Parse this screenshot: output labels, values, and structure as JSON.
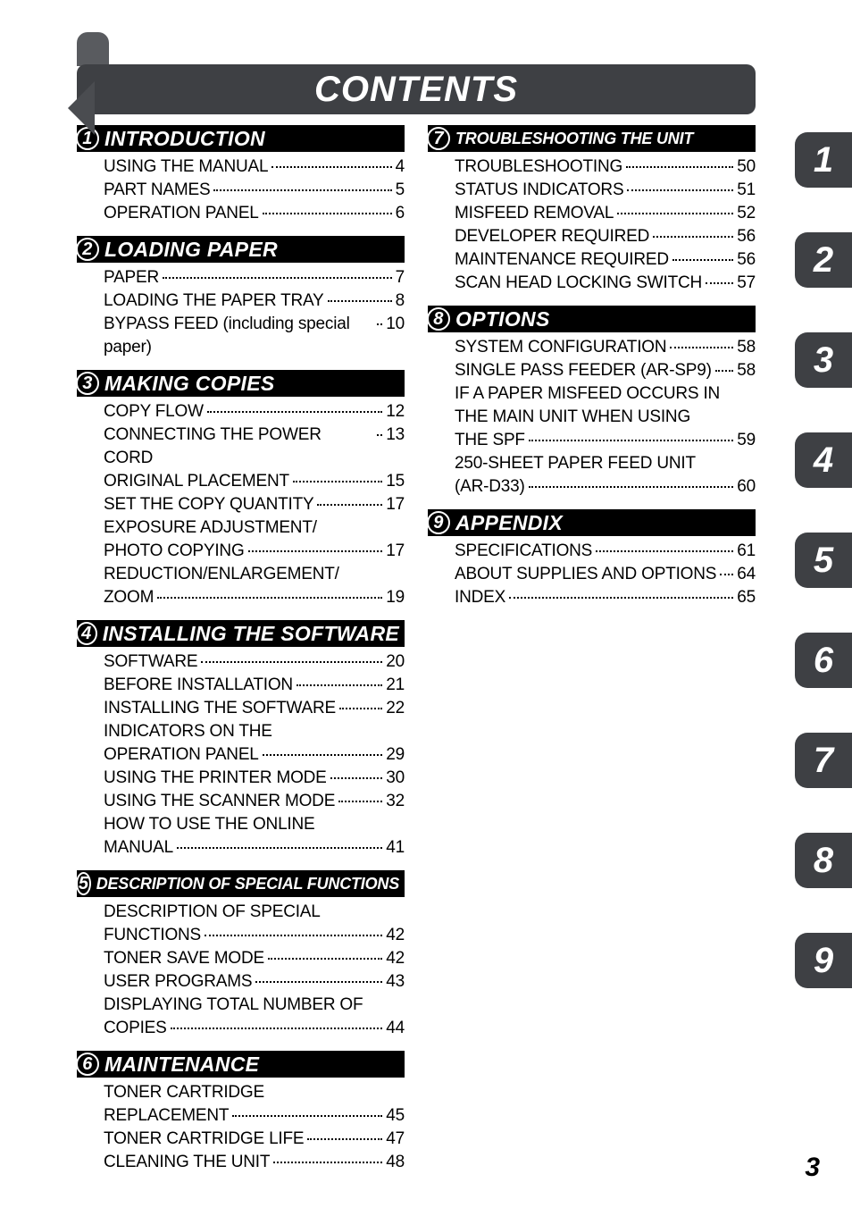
{
  "title": "CONTENTS",
  "page_number": "3",
  "colors": {
    "title_bg": "#3e4044",
    "tab_bg": "#3e4044",
    "section_bg": "#000000",
    "text": "#000000"
  },
  "side_tabs": [
    "1",
    "2",
    "3",
    "4",
    "5",
    "6",
    "7",
    "8",
    "9"
  ],
  "sections_left": [
    {
      "num": "1",
      "title": "INTRODUCTION",
      "entries": [
        {
          "label": "USING THE MANUAL",
          "page": "4"
        },
        {
          "label": "PART NAMES",
          "page": "5"
        },
        {
          "label": "OPERATION PANEL",
          "page": "6"
        }
      ]
    },
    {
      "num": "2",
      "title": "LOADING PAPER",
      "entries": [
        {
          "label": "PAPER",
          "page": "7"
        },
        {
          "label": "LOADING THE PAPER TRAY",
          "page": "8"
        },
        {
          "label": "BYPASS FEED (including special paper)",
          "page": "10"
        }
      ]
    },
    {
      "num": "3",
      "title": "MAKING COPIES",
      "entries": [
        {
          "label": "COPY FLOW",
          "page": "12"
        },
        {
          "label": "CONNECTING THE POWER CORD",
          "page": "13"
        },
        {
          "label": "ORIGINAL PLACEMENT",
          "page": "15"
        },
        {
          "label": "SET THE COPY QUANTITY",
          "page": "17"
        },
        {
          "label": "EXPOSURE ADJUSTMENT/\nPHOTO COPYING",
          "page": "17"
        },
        {
          "label": "REDUCTION/ENLARGEMENT/\nZOOM",
          "page": "19"
        }
      ]
    },
    {
      "num": "4",
      "title": "INSTALLING THE SOFTWARE",
      "entries": [
        {
          "label": "SOFTWARE",
          "page": "20"
        },
        {
          "label": "BEFORE INSTALLATION",
          "page": "21"
        },
        {
          "label": "INSTALLING THE SOFTWARE",
          "page": "22"
        },
        {
          "label": "INDICATORS ON THE\nOPERATION PANEL",
          "page": "29"
        },
        {
          "label": "USING THE PRINTER MODE",
          "page": "30"
        },
        {
          "label": "USING THE SCANNER MODE",
          "page": "32"
        },
        {
          "label": "HOW TO USE THE ONLINE\nMANUAL",
          "page": "41"
        }
      ]
    },
    {
      "num": "5",
      "title": "DESCRIPTION OF SPECIAL FUNCTIONS",
      "small": true,
      "entries": [
        {
          "label": "DESCRIPTION OF SPECIAL\nFUNCTIONS",
          "page": "42"
        },
        {
          "label": "TONER SAVE MODE",
          "page": "42"
        },
        {
          "label": "USER PROGRAMS",
          "page": "43"
        },
        {
          "label": "DISPLAYING TOTAL NUMBER OF\nCOPIES",
          "page": "44"
        }
      ]
    },
    {
      "num": "6",
      "title": "MAINTENANCE",
      "entries": [
        {
          "label": "TONER CARTRIDGE\nREPLACEMENT",
          "page": "45"
        },
        {
          "label": "TONER CARTRIDGE LIFE",
          "page": "47"
        },
        {
          "label": "CLEANING THE UNIT",
          "page": "48"
        }
      ]
    }
  ],
  "sections_right": [
    {
      "num": "7",
      "title": "TROUBLESHOOTING THE UNIT",
      "small": true,
      "entries": [
        {
          "label": "TROUBLESHOOTING",
          "page": "50"
        },
        {
          "label": "STATUS INDICATORS",
          "page": "51"
        },
        {
          "label": "MISFEED REMOVAL",
          "page": "52"
        },
        {
          "label": "DEVELOPER REQUIRED",
          "page": "56"
        },
        {
          "label": "MAINTENANCE REQUIRED",
          "page": "56"
        },
        {
          "label": "SCAN HEAD LOCKING SWITCH",
          "page": "57"
        }
      ]
    },
    {
      "num": "8",
      "title": "OPTIONS",
      "entries": [
        {
          "label": "SYSTEM CONFIGURATION",
          "page": "58"
        },
        {
          "label": "SINGLE PASS FEEDER (AR-SP9)",
          "page": "58"
        },
        {
          "label": "IF A PAPER MISFEED OCCURS IN\nTHE MAIN UNIT WHEN USING\nTHE SPF",
          "page": "59"
        },
        {
          "label": "250-SHEET PAPER FEED UNIT\n(AR-D33)",
          "page": "60"
        }
      ]
    },
    {
      "num": "9",
      "title": "APPENDIX",
      "entries": [
        {
          "label": "SPECIFICATIONS",
          "page": "61"
        },
        {
          "label": "ABOUT SUPPLIES AND OPTIONS",
          "page": "64"
        },
        {
          "label": "INDEX",
          "page": "65"
        }
      ]
    }
  ]
}
